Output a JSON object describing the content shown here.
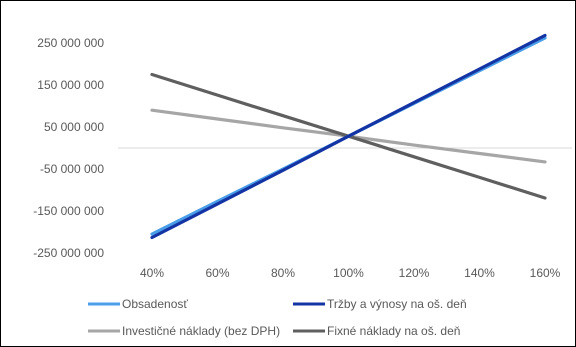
{
  "chart_data": {
    "type": "line",
    "title": "",
    "xlabel": "",
    "ylabel": "",
    "x": [
      "40%",
      "60%",
      "80%",
      "100%",
      "120%",
      "140%",
      "160%"
    ],
    "y_ticks": [
      "250 000 000",
      "150 000 000",
      "50 000 000",
      "-50 000 000",
      "-150 000 000",
      "-250 000 000"
    ],
    "y_tick_values": [
      250000000,
      150000000,
      50000000,
      -50000000,
      -150000000,
      -250000000
    ],
    "ylim": [
      -250000000,
      250000000
    ],
    "grid": false,
    "legend_position": "bottom",
    "series": [
      {
        "name": "Obsadenosť",
        "color": "#4a9ee8",
        "values": [
          -205000000,
          -127000000,
          -50000000,
          28000000,
          106000000,
          184000000,
          262000000
        ]
      },
      {
        "name": "Tržby a výnosy na oš. deň",
        "color": "#1434a4",
        "values": [
          -213000000,
          -133000000,
          -53000000,
          28000000,
          108000000,
          188000000,
          268000000
        ]
      },
      {
        "name": "Investičné náklady (bez DPH)",
        "color": "#a6a6a6",
        "values": [
          90000000,
          69000000,
          48000000,
          28000000,
          7000000,
          -13000000,
          -33000000
        ]
      },
      {
        "name": "Fixné náklady na oš. deň",
        "color": "#5f5f5f",
        "values": [
          175000000,
          126000000,
          77000000,
          28000000,
          -21000000,
          -70000000,
          -119000000
        ]
      }
    ]
  }
}
